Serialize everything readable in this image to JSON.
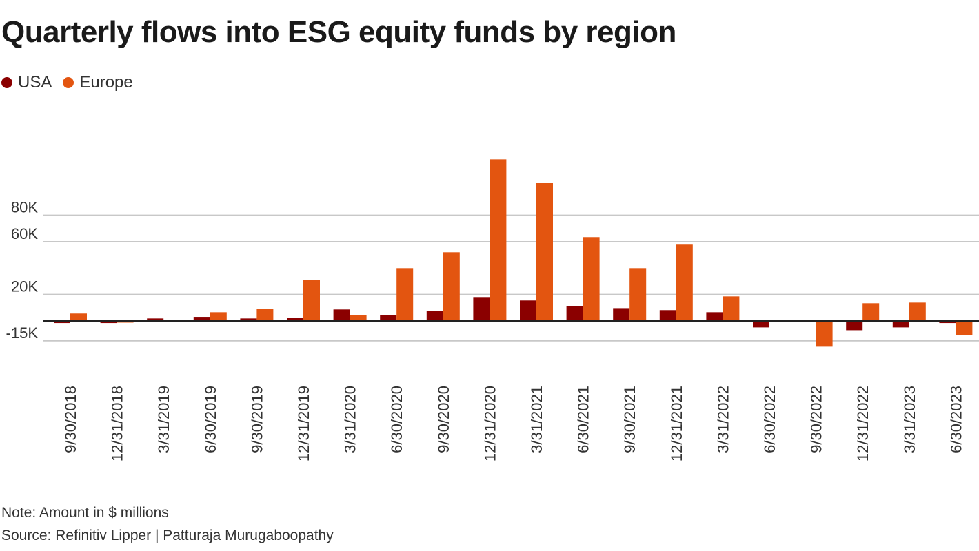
{
  "chart_data": {
    "type": "bar",
    "title": "Quarterly flows into ESG equity funds by region",
    "xlabel": "",
    "ylabel": "",
    "ylim": [
      -20000,
      125000
    ],
    "grid": true,
    "legend_position": "top-left",
    "y_ticks": [
      {
        "value": 80000,
        "label": "80K"
      },
      {
        "value": 60000,
        "label": "60K"
      },
      {
        "value": 20000,
        "label": "20K"
      },
      {
        "value": -15000,
        "label": "-15K"
      }
    ],
    "categories": [
      "9/30/2018",
      "12/31/2018",
      "3/31/2019",
      "6/30/2019",
      "9/30/2019",
      "12/31/2019",
      "3/31/2020",
      "6/30/2020",
      "9/30/2020",
      "12/31/2020",
      "3/31/2021",
      "6/30/2021",
      "9/30/2021",
      "12/31/2021",
      "3/31/2022",
      "6/30/2022",
      "9/30/2022",
      "12/31/2022",
      "3/31/2023",
      "6/30/2023"
    ],
    "series": [
      {
        "name": "USA",
        "color": "#8b0000",
        "values": [
          -1600,
          -1600,
          1900,
          3100,
          1900,
          2600,
          8700,
          4500,
          7700,
          18100,
          15500,
          11300,
          9700,
          8200,
          6600,
          -4900,
          0,
          -7000,
          -4900,
          -1600
        ]
      },
      {
        "name": "Europe",
        "color": "#e35510",
        "values": [
          5600,
          -1300,
          -1000,
          6600,
          9200,
          31100,
          4500,
          40000,
          52000,
          122400,
          104700,
          63500,
          40000,
          58300,
          18600,
          0,
          -19500,
          13400,
          13900,
          -10600
        ]
      }
    ],
    "note": "Note: Amount in $ millions",
    "source": "Source: Refinitiv Lipper | Patturaja Murugaboopathy"
  }
}
